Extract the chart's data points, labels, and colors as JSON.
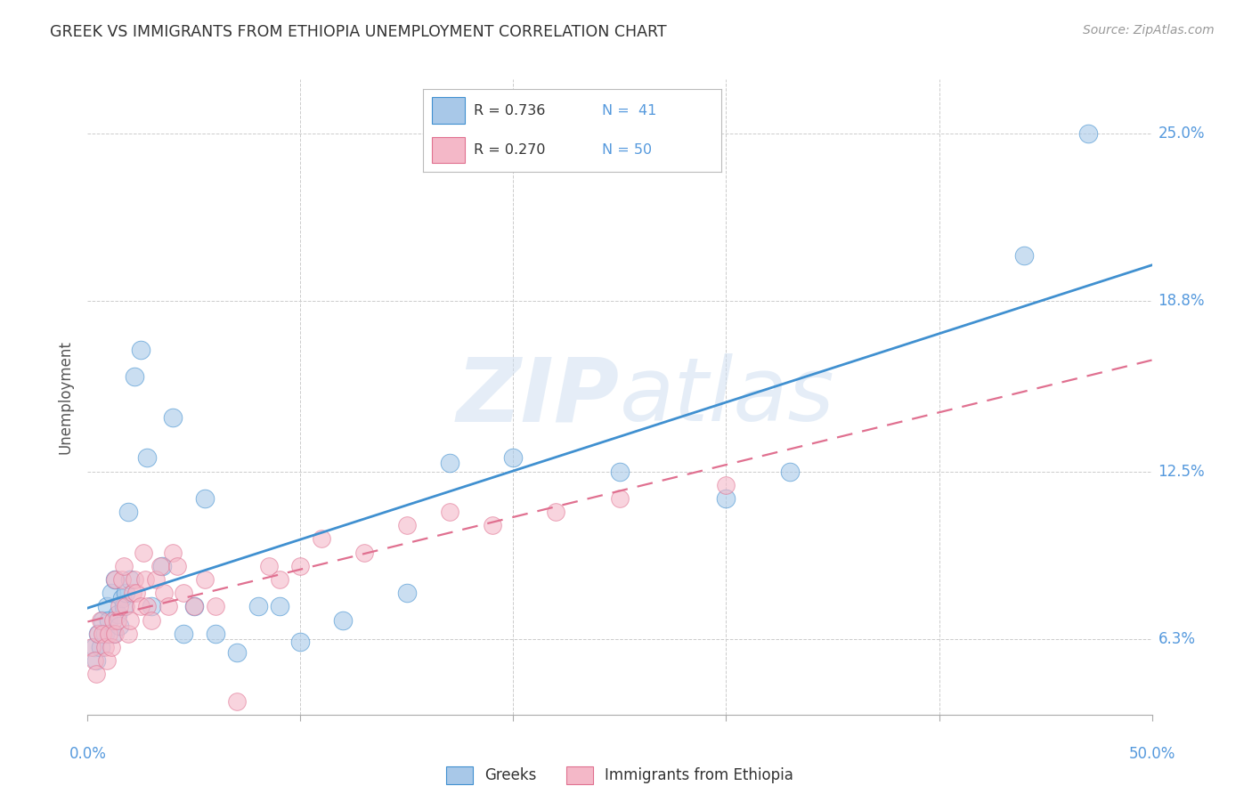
{
  "title": "GREEK VS IMMIGRANTS FROM ETHIOPIA UNEMPLOYMENT CORRELATION CHART",
  "source": "Source: ZipAtlas.com",
  "ylabel": "Unemployment",
  "ytick_labels": [
    "6.3%",
    "12.5%",
    "18.8%",
    "25.0%"
  ],
  "ytick_vals": [
    6.3,
    12.5,
    18.8,
    25.0
  ],
  "xlim": [
    0.0,
    50.0
  ],
  "ylim": [
    3.5,
    27.0
  ],
  "watermark_zip": "ZIP",
  "watermark_atlas": "atlas",
  "blue_color": "#a8c8e8",
  "pink_color": "#f4b8c8",
  "line_blue": "#4090d0",
  "line_pink": "#e07090",
  "greeks_x": [
    0.3,
    0.4,
    0.5,
    0.6,
    0.7,
    0.8,
    0.9,
    1.0,
    1.1,
    1.2,
    1.3,
    1.4,
    1.5,
    1.6,
    1.7,
    1.8,
    1.9,
    2.0,
    2.2,
    2.5,
    2.8,
    3.0,
    3.5,
    4.0,
    4.5,
    5.0,
    5.5,
    6.0,
    7.0,
    8.0,
    9.0,
    10.0,
    12.0,
    15.0,
    17.0,
    20.0,
    25.0,
    30.0,
    33.0,
    44.0,
    47.0
  ],
  "greeks_y": [
    6.0,
    5.5,
    6.5,
    6.0,
    7.0,
    6.5,
    7.5,
    7.0,
    8.0,
    6.5,
    8.5,
    7.2,
    6.8,
    7.8,
    7.5,
    8.0,
    11.0,
    8.5,
    16.0,
    17.0,
    13.0,
    7.5,
    9.0,
    14.5,
    6.5,
    7.5,
    11.5,
    6.5,
    5.8,
    7.5,
    7.5,
    6.2,
    7.0,
    8.0,
    12.8,
    13.0,
    12.5,
    11.5,
    12.5,
    20.5,
    25.0
  ],
  "ethiopia_x": [
    0.2,
    0.3,
    0.4,
    0.5,
    0.6,
    0.7,
    0.8,
    0.9,
    1.0,
    1.1,
    1.2,
    1.3,
    1.3,
    1.4,
    1.5,
    1.6,
    1.7,
    1.8,
    1.9,
    2.0,
    2.1,
    2.2,
    2.3,
    2.5,
    2.6,
    2.7,
    2.8,
    3.0,
    3.2,
    3.4,
    3.6,
    3.8,
    4.0,
    4.2,
    4.5,
    5.0,
    5.5,
    6.0,
    7.0,
    8.5,
    9.0,
    10.0,
    11.0,
    13.0,
    15.0,
    17.0,
    19.0,
    22.0,
    25.0,
    30.0
  ],
  "ethiopia_y": [
    6.0,
    5.5,
    5.0,
    6.5,
    7.0,
    6.5,
    6.0,
    5.5,
    6.5,
    6.0,
    7.0,
    6.5,
    8.5,
    7.0,
    7.5,
    8.5,
    9.0,
    7.5,
    6.5,
    7.0,
    8.0,
    8.5,
    8.0,
    7.5,
    9.5,
    8.5,
    7.5,
    7.0,
    8.5,
    9.0,
    8.0,
    7.5,
    9.5,
    9.0,
    8.0,
    7.5,
    8.5,
    7.5,
    4.0,
    9.0,
    8.5,
    9.0,
    10.0,
    9.5,
    10.5,
    11.0,
    10.5,
    11.0,
    11.5,
    12.0
  ]
}
